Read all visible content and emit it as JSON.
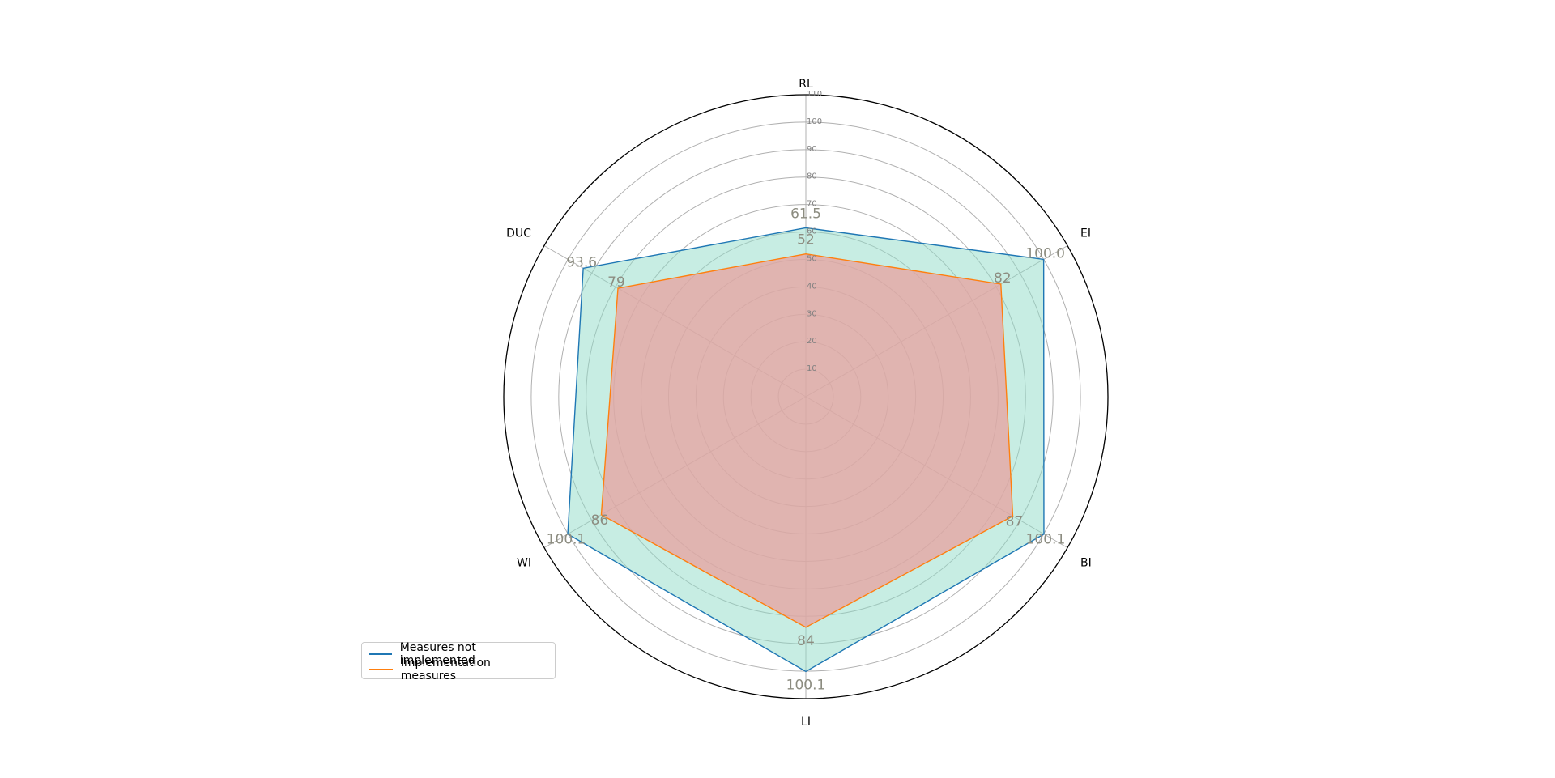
{
  "chart_data": {
    "type": "radar",
    "categories": [
      "RL",
      "EI",
      "BI",
      "LI",
      "WI",
      "DUC"
    ],
    "rlim": [
      0,
      110
    ],
    "r_ticks": [
      10,
      20,
      30,
      40,
      50,
      60,
      70,
      80,
      90,
      100,
      110
    ],
    "r_tick_labels": [
      "10",
      "20",
      "30",
      "40",
      "50",
      "60",
      "70",
      "80",
      "90",
      "100",
      "110"
    ],
    "grid": true,
    "legend_position": "lower-left",
    "series": [
      {
        "name": "Measures not implemented",
        "values": [
          61.5,
          100.0,
          100.1,
          100.1,
          100.1,
          93.6
        ],
        "value_labels": [
          "61.5",
          "100.0",
          "100.1",
          "100.1",
          "100.1",
          "93.6"
        ],
        "line_color": "#1f77b4",
        "fill_color": "#8fdcc8"
      },
      {
        "name": "Implementation measures",
        "values": [
          52,
          82,
          87,
          84,
          86,
          79
        ],
        "value_labels": [
          "52",
          "82",
          "87",
          "84",
          "86",
          "79"
        ],
        "line_color": "#ff7f0e",
        "fill_color": "#e8a09f"
      }
    ]
  }
}
